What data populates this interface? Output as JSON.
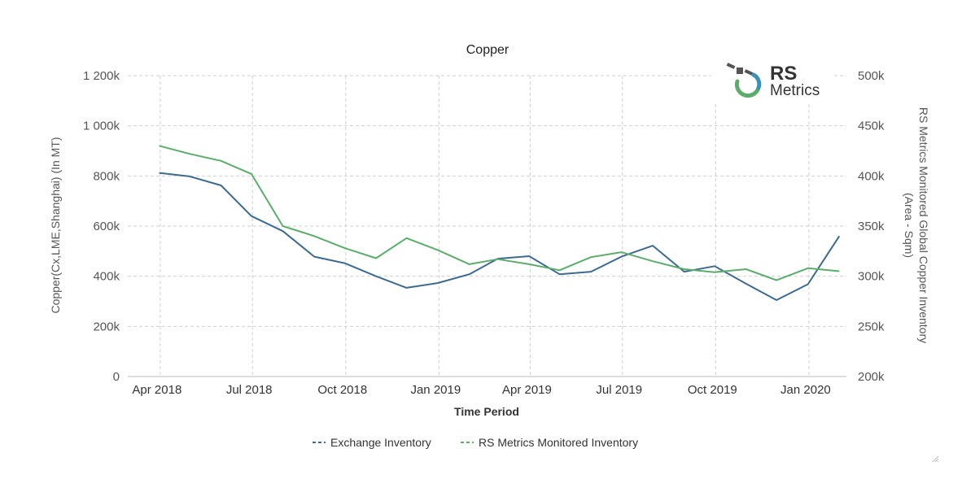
{
  "chart_data": {
    "type": "line",
    "title": "Copper",
    "xlabel": "Time Period",
    "ylabel_left": "Copper(Cx,LME,Shanghai) (In MT)",
    "ylabel_right": [
      "RS Metrics Monitored Global Copper Inventory",
      "(Area - Sqm)"
    ],
    "x_ticks": [
      "Apr 2018",
      "Jul 2018",
      "Oct 2018",
      "Jan 2019",
      "Apr 2019",
      "Jul 2019",
      "Oct 2019",
      "Jan 2020"
    ],
    "y_left_ticks": [
      "0",
      "200k",
      "400k",
      "600k",
      "800k",
      "1 000k",
      "1 200k"
    ],
    "y_right_ticks": [
      "200k",
      "250k",
      "300k",
      "350k",
      "400k",
      "450k",
      "500k"
    ],
    "ylim_left": [
      0,
      1200000
    ],
    "ylim_right": [
      200000,
      500000
    ],
    "x": [
      "2018-03-31",
      "2018-04-30",
      "2018-05-31",
      "2018-06-30",
      "2018-07-31",
      "2018-08-31",
      "2018-09-30",
      "2018-10-31",
      "2018-11-30",
      "2018-12-31",
      "2019-01-31",
      "2019-02-28",
      "2019-03-31",
      "2019-04-30",
      "2019-05-31",
      "2019-06-30",
      "2019-07-31",
      "2019-08-31",
      "2019-09-30",
      "2019-10-31",
      "2019-11-30",
      "2019-12-31",
      "2020-01-31"
    ],
    "series": [
      {
        "name": "Exchange Inventory",
        "axis": "left",
        "color": "#3d6a8f",
        "values": [
          812000,
          798000,
          762000,
          640000,
          580000,
          478000,
          452000,
          400000,
          354000,
          373000,
          408000,
          470000,
          480000,
          408000,
          418000,
          478000,
          522000,
          418000,
          440000,
          370000,
          305000,
          368000,
          560000
        ]
      },
      {
        "name": "RS Metrics Monitored Inventory",
        "axis": "right",
        "color": "#5cad6c",
        "values": [
          430000,
          422000,
          415000,
          402000,
          350000,
          340000,
          328000,
          318000,
          338000,
          326000,
          312000,
          317000,
          312000,
          306000,
          319000,
          324000,
          315000,
          307000,
          304000,
          307000,
          296000,
          308000,
          305000
        ]
      }
    ],
    "grid": true,
    "legend_position": "bottom-center"
  },
  "logo": {
    "rs": "RS",
    "metrics": "Metrics"
  }
}
